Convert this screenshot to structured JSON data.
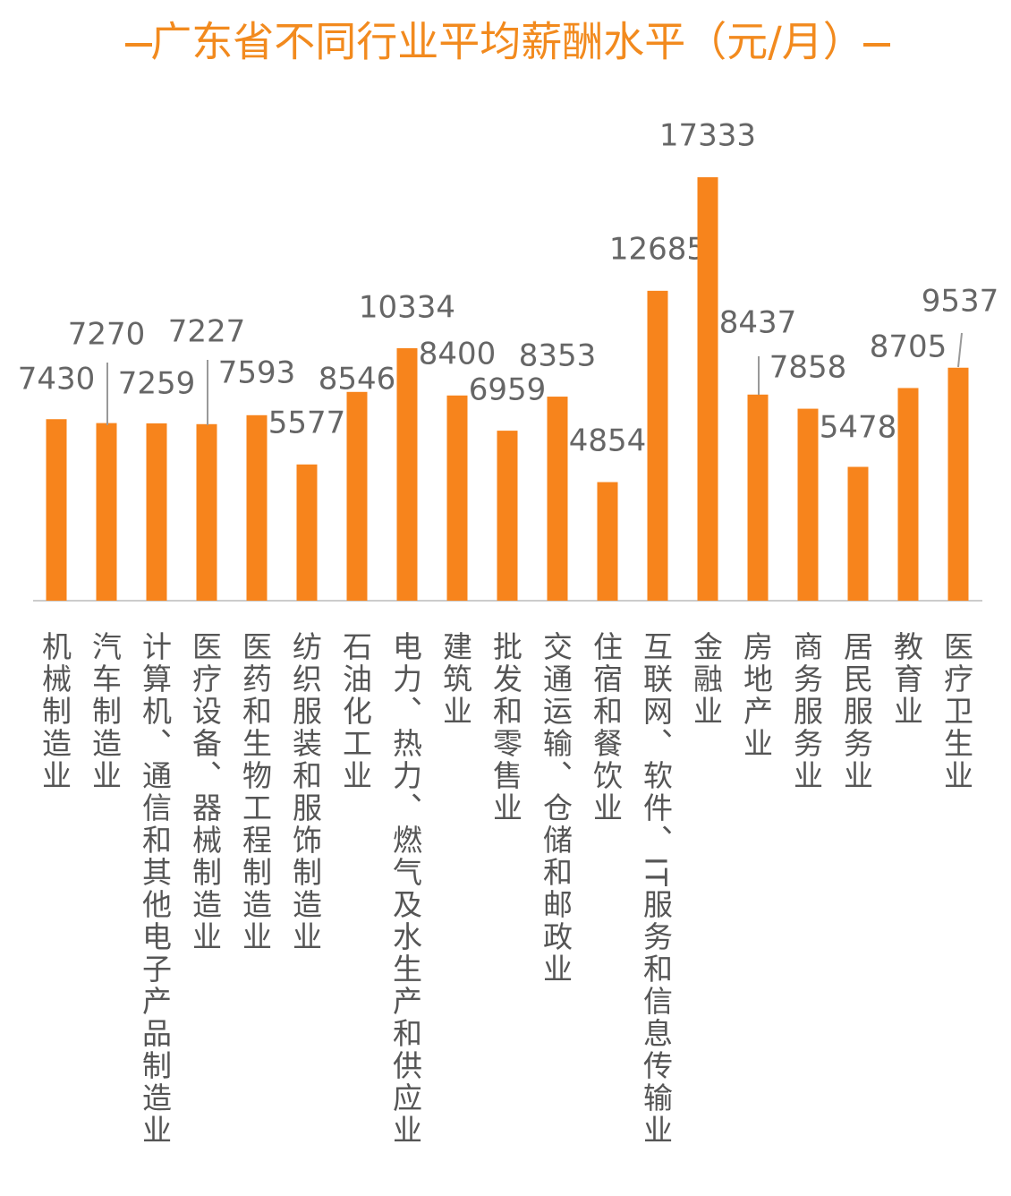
{
  "chart_data": {
    "type": "bar",
    "title": "广东省不同行业平均薪酬水平（元/月）",
    "categories": [
      "机械制造业",
      "汽车制造业",
      "计算机、通信和其他电子产品制造业",
      "医疗设备、器械制造业",
      "医药和生物工程制造业",
      "纺织服装和服饰制造业",
      "石油化工业",
      "电力、热力、燃气及水生产和供应业",
      "建筑业",
      "批发和零售业",
      "交通运输、仓储和邮政业",
      "住宿和餐饮业",
      "互联网、软件、IT服务和信息传输业",
      "金融业",
      "房地产业",
      "商务服务业",
      "居民服务业",
      "教育业",
      "医疗卫生业"
    ],
    "values": [
      7430,
      7270,
      7259,
      7227,
      7593,
      5577,
      8546,
      10334,
      8400,
      6959,
      8353,
      4854,
      12685,
      17333,
      8437,
      7858,
      5478,
      8705,
      9537
    ],
    "color": "#f7841c"
  }
}
